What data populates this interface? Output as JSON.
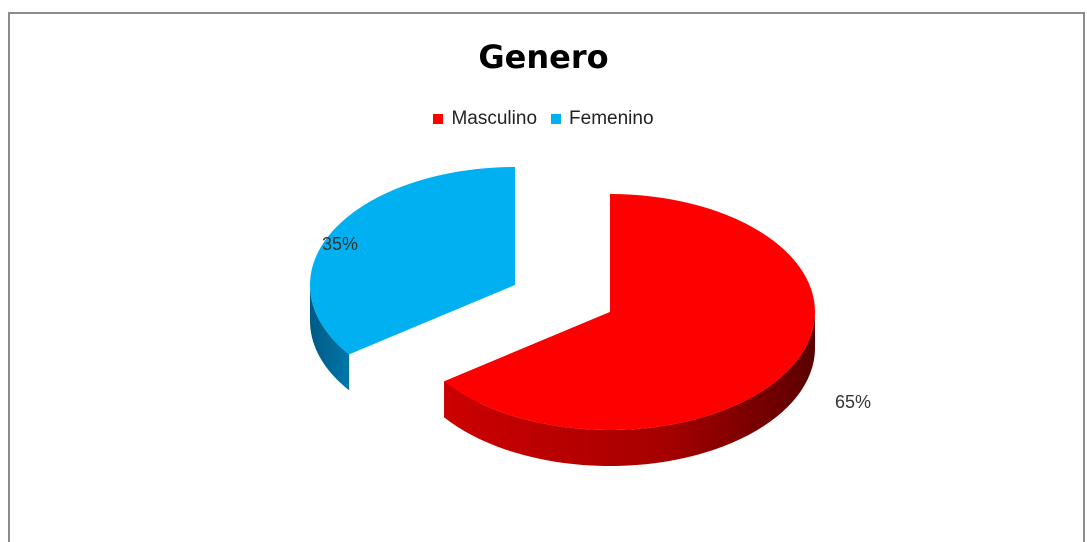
{
  "chart_data": {
    "type": "pie",
    "title": "Genero",
    "legend_position": "top",
    "three_d": true,
    "exploded": true,
    "series": [
      {
        "name": "Masculino",
        "value": 65,
        "label": "65%",
        "color": "#ff0000",
        "side_color": "#b30000"
      },
      {
        "name": "Femenino",
        "value": 35,
        "label": "35%",
        "color": "#00b0f0",
        "side_color": "#006090"
      }
    ]
  }
}
